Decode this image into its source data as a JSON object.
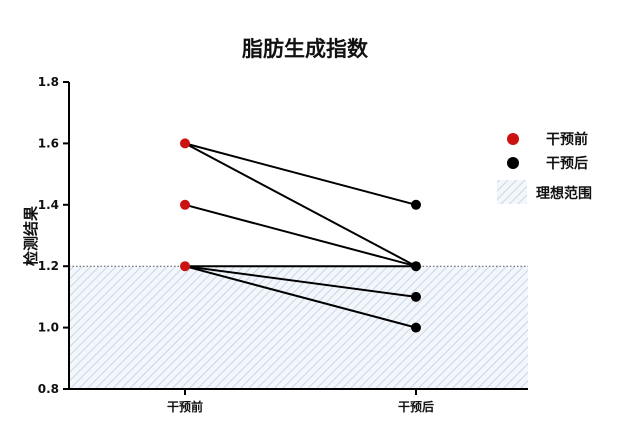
{
  "chart_data": {
    "type": "line",
    "title": "脂肪生成指数",
    "ylabel": "检测结果",
    "xlabel": "",
    "categories": [
      "干预前",
      "干预后"
    ],
    "ylim": [
      0.8,
      1.8
    ],
    "yticks": [
      "0.8",
      "1.0",
      "1.2",
      "1.4",
      "1.6",
      "1.8"
    ],
    "yticks_values": [
      0.8,
      1.0,
      1.2,
      1.4,
      1.6,
      1.8
    ],
    "grid": false,
    "legend_position": "right",
    "paired_data": [
      {
        "before": 1.6,
        "after": 1.2
      },
      {
        "before": 1.6,
        "after": 1.4
      },
      {
        "before": 1.4,
        "after": 1.2
      },
      {
        "before": 1.2,
        "after": 1.1
      },
      {
        "before": 1.2,
        "after": 1.0
      },
      {
        "before": 1.2,
        "after": 1.2
      }
    ],
    "ideal_range": {
      "label": "理想范围",
      "ymin": 0.8,
      "ymax": 1.2
    },
    "legend": [
      {
        "name": "干预前",
        "color": "#cc1111",
        "shape": "circle"
      },
      {
        "name": "干预后",
        "color": "#000000",
        "shape": "circle"
      },
      {
        "name": "理想范围",
        "shape": "hatched-rect"
      }
    ]
  }
}
